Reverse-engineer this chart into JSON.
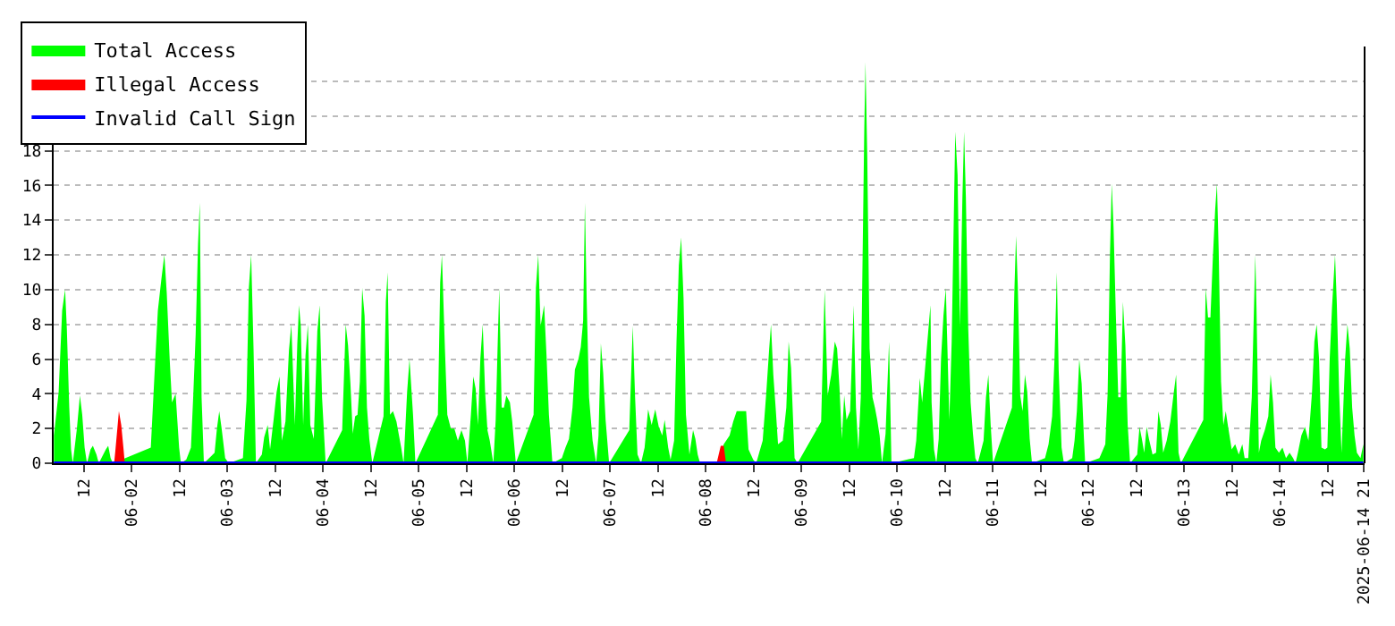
{
  "chart_data": {
    "type": "area",
    "xlim": [
      "2025-06-01T04:24",
      "2025-06-14T21:12"
    ],
    "xticks": [
      {
        "value": "2025-06-01T12:00",
        "label": "12"
      },
      {
        "value": "2025-06-02",
        "label": "06-02"
      },
      {
        "value": "2025-06-02T12:00",
        "label": "12"
      },
      {
        "value": "2025-06-03",
        "label": "06-03"
      },
      {
        "value": "2025-06-03T12:00",
        "label": "12"
      },
      {
        "value": "2025-06-04",
        "label": "06-04"
      },
      {
        "value": "2025-06-04T12:00",
        "label": "12"
      },
      {
        "value": "2025-06-05",
        "label": "06-05"
      },
      {
        "value": "2025-06-05T12:00",
        "label": "12"
      },
      {
        "value": "2025-06-06",
        "label": "06-06"
      },
      {
        "value": "2025-06-06T12:00",
        "label": "12"
      },
      {
        "value": "2025-06-07",
        "label": "06-07"
      },
      {
        "value": "2025-06-07T12:00",
        "label": "12"
      },
      {
        "value": "2025-06-08",
        "label": "06-08"
      },
      {
        "value": "2025-06-08T12:00",
        "label": "12"
      },
      {
        "value": "2025-06-09",
        "label": "06-09"
      },
      {
        "value": "2025-06-09T12:00",
        "label": "12"
      },
      {
        "value": "2025-06-10",
        "label": "06-10"
      },
      {
        "value": "2025-06-10T12:00",
        "label": "12"
      },
      {
        "value": "2025-06-11",
        "label": "06-11"
      },
      {
        "value": "2025-06-11T12:00",
        "label": "12"
      },
      {
        "value": "2025-06-12",
        "label": "06-12"
      },
      {
        "value": "2025-06-12T12:00",
        "label": "12"
      },
      {
        "value": "2025-06-13",
        "label": "06-13"
      },
      {
        "value": "2025-06-13T12:00",
        "label": "12"
      },
      {
        "value": "2025-06-14",
        "label": "06-14"
      },
      {
        "value": "2025-06-14T12:00",
        "label": "12"
      },
      {
        "value": "2025-06-14T21:00",
        "label": "2025-06-14 21"
      }
    ],
    "ylim": [
      0,
      24
    ],
    "yticks": [
      0,
      2,
      4,
      6,
      8,
      10,
      12,
      14,
      16,
      18,
      {
        "value": 20,
        "label": null
      },
      {
        "value": 22,
        "label": null
      },
      {
        "value": 24,
        "label": null
      }
    ],
    "grid": "y",
    "legend": "top left",
    "series": [
      {
        "name": "Total Access",
        "color": "#00ff00",
        "x": [
          "2025-06-01T04:28",
          "2025-06-01T05:39",
          "2025-06-01T06:32",
          "2025-06-01T07:16",
          "2025-06-01T07:43",
          "2025-06-01T08:19",
          "2025-06-01T08:46",
          "2025-06-01T09:12",
          "2025-06-01T10:14",
          "2025-06-01T10:59",
          "2025-06-01T11:34",
          "2025-06-01T12:10",
          "2025-06-01T12:46",
          "2025-06-01T13:39",
          "2025-06-01T14:14",
          "2025-06-01T15:08",
          "2025-06-01T15:43",
          "2025-06-01T17:30",
          "2025-06-01T18:05",
          "2025-06-01T18:41",
          "2025-06-01T19:16",
          "2025-06-02T04:46",
          "2025-06-02T05:39",
          "2025-06-02T06:32",
          "2025-06-02T07:25",
          "2025-06-02T08:10",
          "2025-06-02T08:46",
          "2025-06-02T09:30",
          "2025-06-02T10:05",
          "2025-06-02T10:59",
          "2025-06-02T11:52",
          "2025-06-02T12:19",
          "2025-06-02T13:39",
          "2025-06-02T14:50",
          "2025-06-02T15:25",
          "2025-06-02T16:01",
          "2025-06-02T16:37",
          "2025-06-02T17:03",
          "2025-06-02T17:30",
          "2025-06-02T18:05",
          "2025-06-02T20:46",
          "2025-06-02T21:21",
          "2025-06-02T21:56",
          "2025-06-02T22:32",
          "2025-06-02T23:25",
          "2025-06-03T00:19",
          "2025-06-03T03:52",
          "2025-06-03T04:46",
          "2025-06-03T05:21",
          "2025-06-03T05:56",
          "2025-06-03T06:32",
          "2025-06-03T07:08",
          "2025-06-03T08:37",
          "2025-06-03T09:12",
          "2025-06-03T10:05",
          "2025-06-03T10:41",
          "2025-06-03T11:34",
          "2025-06-03T12:19",
          "2025-06-03T13:03",
          "2025-06-03T13:39",
          "2025-06-03T14:32",
          "2025-06-03T15:25",
          "2025-06-03T16:01",
          "2025-06-03T16:54",
          "2025-06-03T17:30",
          "2025-06-03T17:56",
          "2025-06-03T18:23",
          "2025-06-03T18:59",
          "2025-06-03T19:34",
          "2025-06-03T20:10",
          "2025-06-03T20:46",
          "2025-06-03T21:39",
          "2025-06-03T22:32",
          "2025-06-03T23:07",
          "2025-06-03T23:43",
          "2025-06-04T00:37",
          "2025-06-04T04:46",
          "2025-06-04T05:39",
          "2025-06-04T06:14",
          "2025-06-04T06:50",
          "2025-06-04T07:25",
          "2025-06-04T08:01",
          "2025-06-04T08:37",
          "2025-06-04T09:12",
          "2025-06-04T09:47",
          "2025-06-04T10:23",
          "2025-06-04T10:59",
          "2025-06-04T11:34",
          "2025-06-04T12:19",
          "2025-06-04T15:08",
          "2025-06-04T15:43",
          "2025-06-04T16:10",
          "2025-06-04T16:46",
          "2025-06-04T17:30",
          "2025-06-04T18:23",
          "2025-06-04T19:34",
          "2025-06-04T20:10",
          "2025-06-04T21:03",
          "2025-06-04T21:39",
          "2025-06-04T22:32",
          "2025-06-04T23:08",
          "2025-06-05T04:46",
          "2025-06-05T05:21",
          "2025-06-05T05:47",
          "2025-06-05T06:32",
          "2025-06-05T07:08",
          "2025-06-05T08:01",
          "2025-06-05T08:54",
          "2025-06-05T09:47",
          "2025-06-05T10:41",
          "2025-06-05T11:34",
          "2025-06-05T12:10",
          "2025-06-05T13:03",
          "2025-06-05T13:39",
          "2025-06-05T14:14",
          "2025-06-05T14:50",
          "2025-06-05T15:25",
          "2025-06-05T16:01",
          "2025-06-05T16:37",
          "2025-06-05T17:12",
          "2025-06-05T17:47",
          "2025-06-05T18:41",
          "2025-06-05T19:16",
          "2025-06-05T19:52",
          "2025-06-05T20:10",
          "2025-06-05T20:46",
          "2025-06-05T21:21",
          "2025-06-05T21:56",
          "2025-06-05T22:50",
          "2025-06-05T23:25",
          "2025-06-06T00:19",
          "2025-06-06T04:46",
          "2025-06-06T05:21",
          "2025-06-06T05:56",
          "2025-06-06T06:32",
          "2025-06-06T07:25",
          "2025-06-06T08:01",
          "2025-06-06T08:37",
          "2025-06-06T09:30",
          "2025-06-06T11:52",
          "2025-06-06T12:46",
          "2025-06-06T13:39",
          "2025-06-06T14:32",
          "2025-06-06T15:08",
          "2025-06-06T16:01",
          "2025-06-06T16:37",
          "2025-06-06T17:12",
          "2025-06-06T17:39",
          "2025-06-06T18:05",
          "2025-06-06T18:41",
          "2025-06-06T19:34",
          "2025-06-06T20:28",
          "2025-06-06T21:03",
          "2025-06-06T21:39",
          "2025-06-06T22:14",
          "2025-06-06T22:50",
          "2025-06-06T23:43",
          "2025-06-07T04:46",
          "2025-06-07T05:39",
          "2025-06-07T06:14",
          "2025-06-07T06:50",
          "2025-06-07T07:43",
          "2025-06-07T08:37",
          "2025-06-07T09:30",
          "2025-06-07T10:23",
          "2025-06-07T11:17",
          "2025-06-07T12:10",
          "2025-06-07T13:03",
          "2025-06-07T13:39",
          "2025-06-07T14:32",
          "2025-06-07T15:08",
          "2025-06-07T16:01",
          "2025-06-07T16:37",
          "2025-06-07T17:12",
          "2025-06-07T17:47",
          "2025-06-07T18:23",
          "2025-06-07T18:59",
          "2025-06-07T19:52",
          "2025-06-07T20:46",
          "2025-06-07T21:21",
          "2025-06-07T21:56",
          "2025-06-07T22:32",
          "2025-06-08T02:58",
          "2025-06-08T04:28",
          "2025-06-08T05:56",
          "2025-06-08T06:50",
          "2025-06-08T07:43",
          "2025-06-08T10:05",
          "2025-06-08T10:41",
          "2025-06-08T11:52",
          "2025-06-08T12:36",
          "2025-06-08T13:21",
          "2025-06-08T14:14",
          "2025-06-08T15:07",
          "2025-06-08T15:52",
          "2025-06-08T16:19",
          "2025-06-08T16:54",
          "2025-06-08T17:29",
          "2025-06-08T18:05",
          "2025-06-08T19:16",
          "2025-06-08T20:10",
          "2025-06-08T20:45",
          "2025-06-08T21:21",
          "2025-06-08T22:14",
          "2025-06-08T22:58",
          "2025-06-09T04:54",
          "2025-06-09T05:29",
          "2025-06-09T05:47",
          "2025-06-09T06:32",
          "2025-06-09T07:25",
          "2025-06-09T08:19",
          "2025-06-09T08:54",
          "2025-06-09T09:29",
          "2025-06-09T10:05",
          "2025-06-09T10:41",
          "2025-06-09T11:16",
          "2025-06-09T12:10",
          "2025-06-09T12:45",
          "2025-06-09T13:03",
          "2025-06-09T13:38",
          "2025-06-09T14:14",
          "2025-06-09T14:50",
          "2025-06-09T15:16",
          "2025-06-09T15:43",
          "2025-06-09T16:01",
          "2025-06-09T16:28",
          "2025-06-09T17:03",
          "2025-06-09T17:47",
          "2025-06-09T18:23",
          "2025-06-09T18:58",
          "2025-06-09T19:34",
          "2025-06-09T20:10",
          "2025-06-09T21:03",
          "2025-06-09T21:38",
          "2025-06-09T21:56",
          "2025-06-09T22:32",
          "2025-06-10T04:10",
          "2025-06-10T04:45",
          "2025-06-10T05:38",
          "2025-06-10T06:14",
          "2025-06-10T06:50",
          "2025-06-10T07:43",
          "2025-06-10T08:19",
          "2025-06-10T08:36",
          "2025-06-10T09:12",
          "2025-06-10T09:47",
          "2025-06-10T10:23",
          "2025-06-10T10:58",
          "2025-06-10T11:34",
          "2025-06-10T12:10",
          "2025-06-10T12:28",
          "2025-06-10T13:03",
          "2025-06-10T13:38",
          "2025-06-10T14:14",
          "2025-06-10T14:32",
          "2025-06-10T15:07",
          "2025-06-10T15:43",
          "2025-06-10T16:19",
          "2025-06-10T16:45",
          "2025-06-10T17:12",
          "2025-06-10T17:47",
          "2025-06-10T18:23",
          "2025-06-10T18:58",
          "2025-06-10T19:34",
          "2025-06-10T20:10",
          "2025-06-10T21:38",
          "2025-06-10T22:14",
          "2025-06-10T22:50",
          "2025-06-10T23:25",
          "2025-06-11T00:01",
          "2025-06-11T04:45",
          "2025-06-11T05:21",
          "2025-06-11T05:47",
          "2025-06-11T06:14",
          "2025-06-11T06:50",
          "2025-06-11T07:25",
          "2025-06-11T08:01",
          "2025-06-11T08:36",
          "2025-06-11T09:12",
          "2025-06-11T09:47",
          "2025-06-11T13:03",
          "2025-06-11T13:56",
          "2025-06-11T14:50",
          "2025-06-11T15:25",
          "2025-06-11T16:01",
          "2025-06-11T16:28",
          "2025-06-11T17:12",
          "2025-06-11T17:47",
          "2025-06-11T19:52",
          "2025-06-11T20:27",
          "2025-06-11T21:02",
          "2025-06-11T21:38",
          "2025-06-11T22:14",
          "2025-06-11T22:49",
          "2025-06-11T23:07",
          "2025-06-12T02:41",
          "2025-06-12T03:16",
          "2025-06-12T04:10",
          "2025-06-12T04:45",
          "2025-06-12T05:20",
          "2025-06-12T05:47",
          "2025-06-12T06:14",
          "2025-06-12T06:49",
          "2025-06-12T07:25",
          "2025-06-12T08:01",
          "2025-06-12T08:36",
          "2025-06-12T09:12",
          "2025-06-12T09:47",
          "2025-06-12T10:23",
          "2025-06-12T12:10",
          "2025-06-12T12:45",
          "2025-06-12T13:20",
          "2025-06-12T13:56",
          "2025-06-12T14:32",
          "2025-06-12T15:07",
          "2025-06-12T16:01",
          "2025-06-12T16:54",
          "2025-06-12T17:29",
          "2025-06-12T18:05",
          "2025-06-12T18:41",
          "2025-06-12T19:34",
          "2025-06-12T20:28",
          "2025-06-12T21:21",
          "2025-06-12T21:56",
          "2025-06-12T22:32",
          "2025-06-12T23:07",
          "2025-06-13T04:45",
          "2025-06-13T05:21",
          "2025-06-13T05:56",
          "2025-06-13T06:32",
          "2025-06-13T07:07",
          "2025-06-13T07:43",
          "2025-06-13T08:10",
          "2025-06-13T08:36",
          "2025-06-13T09:12",
          "2025-06-13T09:47",
          "2025-06-13T10:23",
          "2025-06-13T10:58",
          "2025-06-13T11:52",
          "2025-06-13T12:45",
          "2025-06-13T13:38",
          "2025-06-13T14:32",
          "2025-06-13T15:07",
          "2025-06-13T16:01",
          "2025-06-13T16:54",
          "2025-06-13T17:29",
          "2025-06-13T17:47",
          "2025-06-13T18:05",
          "2025-06-13T18:41",
          "2025-06-13T19:16",
          "2025-06-13T20:10",
          "2025-06-13T21:03",
          "2025-06-13T21:38",
          "2025-06-13T22:14",
          "2025-06-13T22:50",
          "2025-06-13T23:43",
          "2025-06-14T00:36",
          "2025-06-14T01:29",
          "2025-06-14T02:23",
          "2025-06-14T03:16",
          "2025-06-14T03:52",
          "2025-06-14T04:28",
          "2025-06-14T05:20",
          "2025-06-14T06:14",
          "2025-06-14T07:07",
          "2025-06-14T08:01",
          "2025-06-14T08:36",
          "2025-06-14T09:11",
          "2025-06-14T09:47",
          "2025-06-14T10:23",
          "2025-06-14T11:16",
          "2025-06-14T11:52",
          "2025-06-14T12:27",
          "2025-06-14T13:02",
          "2025-06-14T13:47",
          "2025-06-14T14:14",
          "2025-06-14T14:49",
          "2025-06-14T15:25",
          "2025-06-14T16:19",
          "2025-06-14T16:54",
          "2025-06-14T17:29",
          "2025-06-14T18:05",
          "2025-06-14T18:41",
          "2025-06-14T19:16",
          "2025-06-14T20:10",
          "2025-06-14T20:54"
        ],
        "values": [
          1.6,
          4.1,
          8.8,
          10.0,
          7.7,
          3.2,
          0.8,
          0,
          2.0,
          3.9,
          2.8,
          0.9,
          0,
          0.8,
          1.0,
          0.5,
          0,
          0.8,
          1.0,
          0.3,
          0,
          0.9,
          4.9,
          8.8,
          10.6,
          12.0,
          9.8,
          6.0,
          3.5,
          4.0,
          0.9,
          0,
          0.2,
          0.9,
          3.9,
          7.4,
          12.6,
          15.0,
          3.8,
          0,
          0.6,
          2.0,
          3.0,
          2.0,
          0.3,
          0,
          0.3,
          3.6,
          10.1,
          12.0,
          6.6,
          0,
          0.5,
          1.5,
          2.2,
          0.8,
          2.5,
          4.1,
          5.0,
          1.3,
          2.4,
          6.5,
          8.0,
          2.2,
          6.8,
          9.1,
          7.9,
          2.2,
          6.2,
          8.0,
          2.2,
          1.4,
          7.6,
          9.1,
          3.8,
          0,
          1.9,
          8.0,
          6.8,
          4.6,
          1.7,
          2.7,
          2.8,
          4.7,
          10.1,
          8.5,
          3.2,
          1.4,
          0,
          2.7,
          9.3,
          11.0,
          2.8,
          3.0,
          2.4,
          0.9,
          0,
          4.1,
          6.0,
          2.8,
          0,
          2.8,
          10.4,
          12.0,
          6.6,
          2.8,
          2.0,
          2.0,
          1.3,
          1.9,
          1.3,
          0,
          2.8,
          5.0,
          4.3,
          2.2,
          6.0,
          8.0,
          4.1,
          1.9,
          1.3,
          0,
          2.5,
          7.7,
          10.1,
          3.2,
          3.2,
          3.9,
          3.5,
          2.4,
          0,
          2.8,
          10.1,
          12.0,
          7.9,
          9.1,
          6.2,
          2.8,
          0,
          0.3,
          0.9,
          1.4,
          3.2,
          5.4,
          6.0,
          6.7,
          8.2,
          15.0,
          9.5,
          3.8,
          1.3,
          0,
          1.6,
          6.9,
          5.2,
          2.5,
          0,
          1.9,
          7.9,
          3.8,
          0.5,
          0,
          0.9,
          3.1,
          2.2,
          3.1,
          2.1,
          1.6,
          2.5,
          0.9,
          0.2,
          1.3,
          7.0,
          11.4,
          13.0,
          9.5,
          2.8,
          0.5,
          1.9,
          1.4,
          0.5,
          0,
          0,
          1.1,
          1.6,
          2.4,
          3.0,
          3.0,
          0.8,
          0.2,
          0,
          0.6,
          1.3,
          4.0,
          6.6,
          8.0,
          5.1,
          3.2,
          1.1,
          1.3,
          3.2,
          7.0,
          5.5,
          0.3,
          0,
          2.4,
          7.6,
          10.0,
          3.9,
          5.1,
          7.0,
          6.6,
          4.4,
          1.4,
          3.9,
          2.5,
          3.0,
          7.0,
          9.1,
          3.2,
          0.8,
          3.8,
          11.4,
          19.3,
          23.1,
          17.6,
          6.6,
          3.8,
          3.2,
          2.5,
          1.6,
          0,
          1.7,
          5.2,
          7.0,
          0,
          0.3,
          1.3,
          4.9,
          3.5,
          5.1,
          7.5,
          9.1,
          3.5,
          0.8,
          0,
          1.4,
          6.0,
          8.5,
          10.1,
          7.5,
          2.5,
          7.0,
          15.0,
          19.1,
          16.6,
          7.8,
          15.2,
          19.1,
          15.3,
          7.8,
          3.5,
          1.7,
          0.3,
          0,
          1.3,
          3.8,
          5.1,
          2.2,
          0,
          3.2,
          9.8,
          13.1,
          10.1,
          3.9,
          3.0,
          5.1,
          4.1,
          1.4,
          0,
          0.3,
          1.1,
          2.7,
          6.0,
          11.0,
          5.4,
          0.9,
          0,
          0.3,
          1.3,
          3.0,
          6.0,
          4.6,
          1.4,
          0,
          0.3,
          0.6,
          1.1,
          4.0,
          12.0,
          16.1,
          13.6,
          8.5,
          3.8,
          3.8,
          9.3,
          6.8,
          2.2,
          0,
          0.5,
          2.1,
          1.4,
          0.6,
          2.1,
          1.4,
          0.5,
          0.6,
          3.0,
          2.2,
          0.6,
          1.3,
          2.4,
          4.1,
          5.1,
          0.6,
          0,
          2.5,
          10.1,
          8.4,
          8.4,
          11.7,
          14.6,
          16.1,
          12.3,
          4.7,
          2.2,
          3.0,
          2.1,
          0.8,
          1.1,
          0.5,
          1.1,
          0.3,
          0.3,
          3.8,
          9.2,
          12.0,
          9.0,
          0.6,
          1.3,
          1.9,
          2.7,
          5.1,
          3.5,
          0.9,
          0.6,
          0.9,
          0.3,
          0.6,
          0.3,
          0,
          0.6,
          1.6,
          2.1,
          1.3,
          4.1,
          7.0,
          8.0,
          6.0,
          0.9,
          0.8,
          0.9,
          6.0,
          9.0,
          12.0,
          9.2,
          4.1,
          0.6,
          6.0,
          8.0,
          6.6,
          3.2,
          1.6,
          0.6,
          0.3,
          1.1
        ]
      },
      {
        "name": "Illegal Access",
        "color": "#ff0000",
        "x": [
          "2025-06-01T19:34",
          "2025-06-01T19:52",
          "2025-06-01T20:46",
          "2025-06-01T21:21",
          "2025-06-01T21:56",
          "2025-06-01T22:14",
          "2025-06-08T02:41",
          "2025-06-08T03:43",
          "2025-06-08T04:28",
          "2025-06-08T05:03"
        ],
        "values": [
          0,
          0.7,
          3.0,
          2.2,
          0.8,
          0,
          0,
          1.0,
          1.0,
          0
        ]
      },
      {
        "name": "Invalid Call Sign",
        "color": "#0000ff",
        "type": "line",
        "x": [
          "2025-06-01T04:28",
          "2025-06-14T20:54"
        ],
        "values": [
          0,
          0
        ]
      }
    ]
  }
}
